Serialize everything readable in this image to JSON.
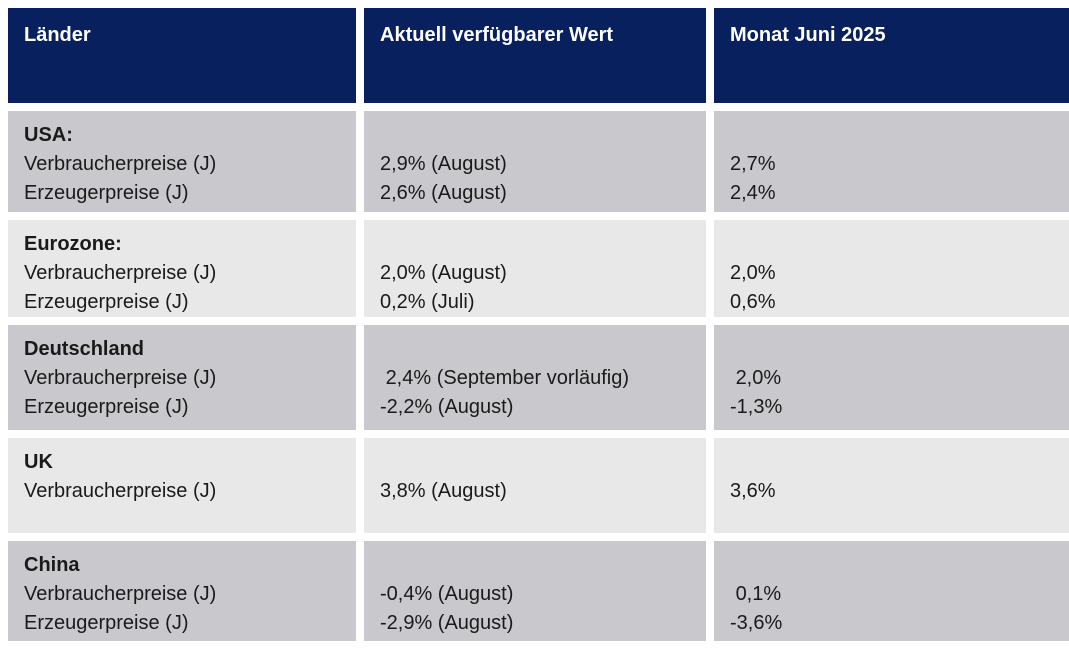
{
  "header": {
    "col1": "Länder",
    "col2": "Aktuell verfügbarer Wert",
    "col3": "Monat Juni 2025"
  },
  "rows": [
    {
      "country": "USA:",
      "indicators": "Verbraucherpreise (J)\nErzeugerpreise (J)",
      "current": "2,9% (August)\n2,6% (August)",
      "june2025": "2,7%\n2,4%"
    },
    {
      "country": "Eurozone:",
      "indicators": "Verbraucherpreise (J)\nErzeugerpreise (J)",
      "current": "2,0% (August)\n0,2% (Juli)",
      "june2025": "2,0%\n0,6%"
    },
    {
      "country": "Deutschland",
      "indicators": "Verbraucherpreise (J)\nErzeugerpreise (J)",
      "current": " 2,4% (September vorläufig)\n-2,2% (August)",
      "june2025": " 2,0%\n-1,3%"
    },
    {
      "country": "UK",
      "indicators": "Verbraucherpreise (J)",
      "current": "3,8% (August)",
      "june2025": "3,6%"
    },
    {
      "country": "China",
      "indicators": "Verbraucherpreise (J)\nErzeugerpreise (J)",
      "current": "-0,4% (August)\n-2,9% (August)",
      "june2025": " 0,1%\n-3,6%"
    }
  ],
  "colors": {
    "header_bg": "#08215e",
    "row_dark": "#c9c9cd",
    "row_light": "#e8e8e8"
  }
}
